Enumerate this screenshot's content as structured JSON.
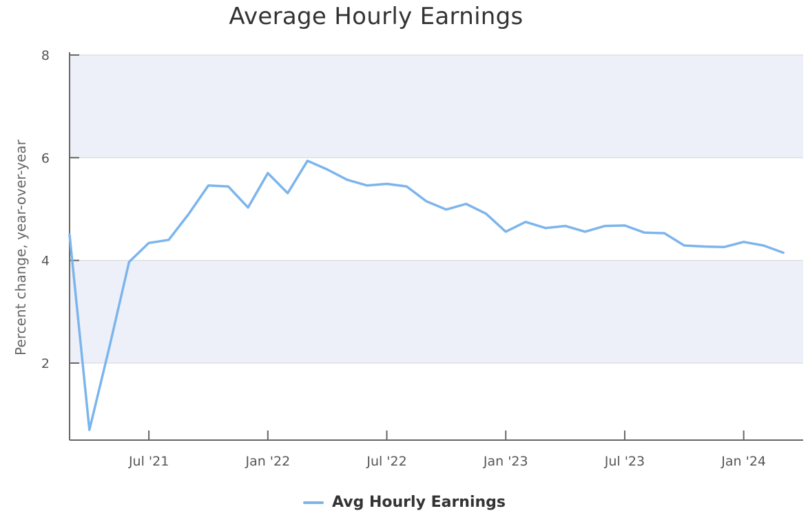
{
  "chart_data": {
    "type": "line",
    "title": "Average Hourly Earnings",
    "ylabel": "Percent change, year-over-year",
    "xlabel": "",
    "ylim": [
      0.5,
      8
    ],
    "yticks": [
      2,
      4,
      6,
      8
    ],
    "grid": true,
    "alternating_bands": true,
    "legend_position": "bottom-center",
    "xlim": [
      "2021-03",
      "2024-04"
    ],
    "x_tick_labels": [
      {
        "month": "2021-07",
        "label": "Jul '21"
      },
      {
        "month": "2022-01",
        "label": "Jan '22"
      },
      {
        "month": "2022-07",
        "label": "Jul '22"
      },
      {
        "month": "2023-01",
        "label": "Jan '23"
      },
      {
        "month": "2023-07",
        "label": "Jul '23"
      },
      {
        "month": "2024-01",
        "label": "Jan '24"
      }
    ],
    "x": [
      "2021-03",
      "2021-04",
      "2021-05",
      "2021-06",
      "2021-07",
      "2021-08",
      "2021-09",
      "2021-10",
      "2021-11",
      "2021-12",
      "2022-01",
      "2022-02",
      "2022-03",
      "2022-04",
      "2022-05",
      "2022-06",
      "2022-07",
      "2022-08",
      "2022-09",
      "2022-10",
      "2022-11",
      "2022-12",
      "2023-01",
      "2023-02",
      "2023-03",
      "2023-04",
      "2023-05",
      "2023-06",
      "2023-07",
      "2023-08",
      "2023-09",
      "2023-10",
      "2023-11",
      "2023-12",
      "2024-01",
      "2024-02",
      "2024-03"
    ],
    "series": [
      {
        "name": "Avg Hourly Earnings",
        "color": "#7cb5ec",
        "values": [
          4.5,
          0.7,
          2.3,
          3.97,
          4.34,
          4.4,
          4.9,
          5.46,
          5.44,
          5.03,
          5.7,
          5.31,
          5.94,
          5.77,
          5.57,
          5.46,
          5.49,
          5.44,
          5.15,
          4.99,
          5.1,
          4.91,
          4.56,
          4.75,
          4.63,
          4.67,
          4.56,
          4.67,
          4.68,
          4.54,
          4.53,
          4.29,
          4.27,
          4.26,
          4.36,
          4.29,
          4.15
        ]
      }
    ]
  }
}
